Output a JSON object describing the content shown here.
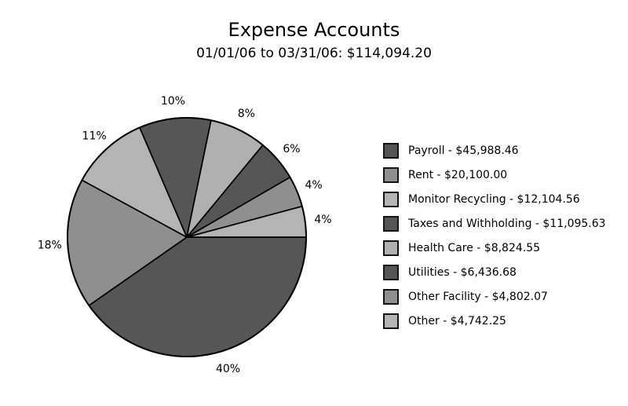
{
  "header": {
    "title": "Expense Accounts",
    "subtitle": "01/01/06 to 03/31/06: $114,094.20"
  },
  "chart_data": {
    "type": "pie",
    "title": "Expense Accounts",
    "subtitle": "01/01/06 to 03/31/06: $114,094.20",
    "total": 114094.2,
    "total_label": "$114,094.20",
    "date_range": "01/01/06 to 03/31/06",
    "start_angle_deg": 0,
    "direction": "clockwise",
    "legend_position": "right",
    "outline_color": "#000000",
    "background_color": "#ffffff",
    "slices": [
      {
        "name": "Payroll",
        "amount": 45988.46,
        "pct_label": "40%",
        "legend_label": "Payroll - $45,988.46",
        "color": "#565656"
      },
      {
        "name": "Rent",
        "amount": 20100.0,
        "pct_label": "18%",
        "legend_label": "Rent - $20,100.00",
        "color": "#8f8f8f"
      },
      {
        "name": "Monitor Recycling",
        "amount": 12104.56,
        "pct_label": "11%",
        "legend_label": "Monitor Recycling - $12,104.56",
        "color": "#b4b4b4"
      },
      {
        "name": "Taxes and Withholding",
        "amount": 11095.63,
        "pct_label": "10%",
        "legend_label": "Taxes and Withholding - $11,095.63",
        "color": "#565656"
      },
      {
        "name": "Health Care",
        "amount": 8824.55,
        "pct_label": "8%",
        "legend_label": "Health Care - $8,824.55",
        "color": "#b0b0b0"
      },
      {
        "name": "Utilities",
        "amount": 6436.68,
        "pct_label": "6%",
        "legend_label": "Utilities - $6,436.68",
        "color": "#565656"
      },
      {
        "name": "Other Facility",
        "amount": 4802.07,
        "pct_label": "4%",
        "legend_label": "Other Facility - $4,802.07",
        "color": "#8f8f8f"
      },
      {
        "name": "Other",
        "amount": 4742.25,
        "pct_label": "4%",
        "legend_label": "Other - $4,742.25",
        "color": "#b4b4b4"
      }
    ]
  }
}
